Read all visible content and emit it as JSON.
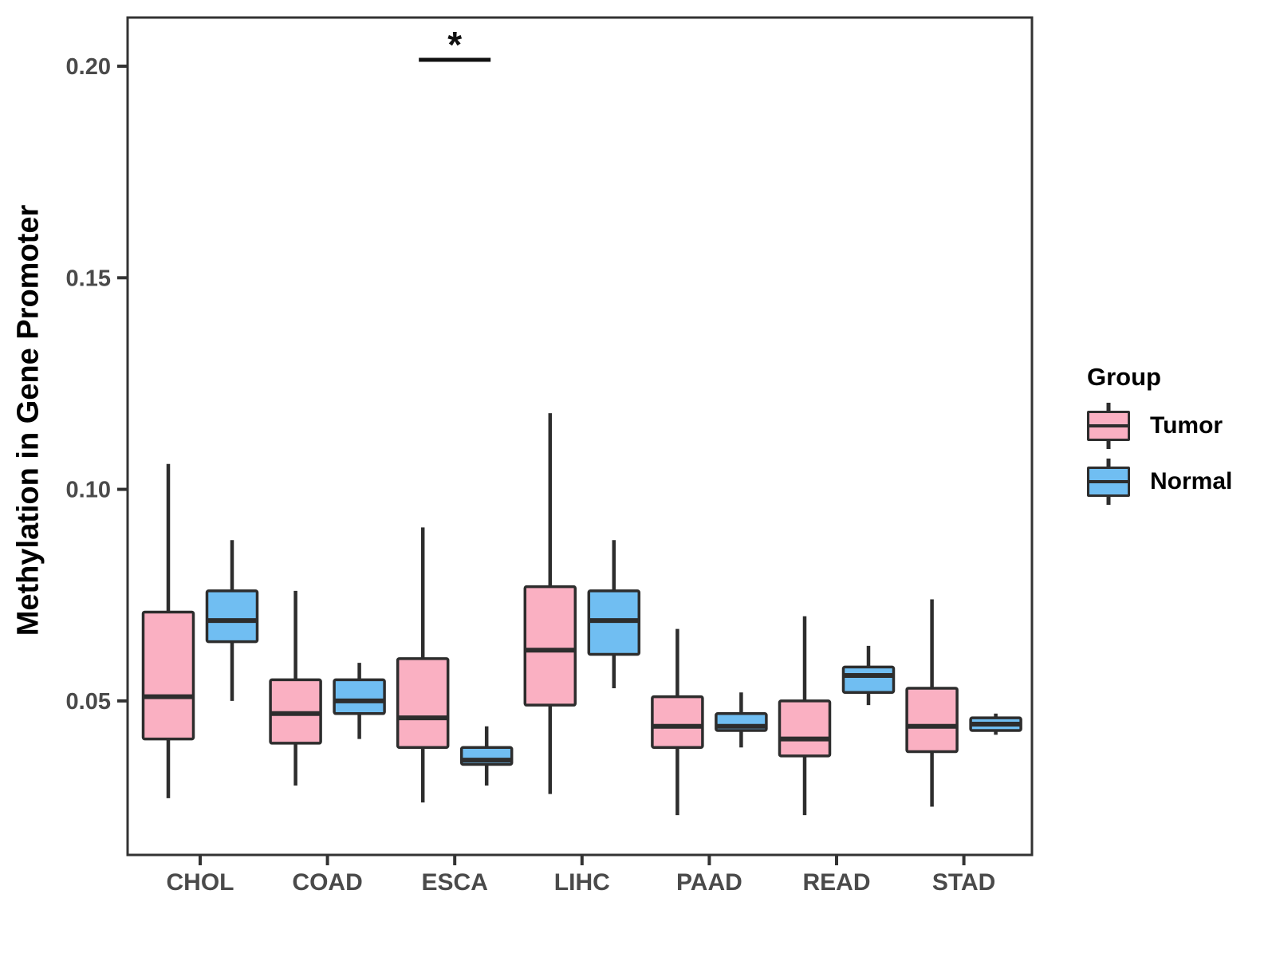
{
  "colors": {
    "tumor": "#FAB0C2",
    "normal": "#70BEF2",
    "box_line": "#2D2D2D",
    "axis_line": "#333333",
    "axis_text": "#4A4A4A",
    "significance": "#111111",
    "background": "#FFFFFF"
  },
  "chart_data": {
    "type": "boxplot",
    "title": "",
    "xlabel": "",
    "ylabel": "Methylation in Gene Promoter",
    "categories": [
      "CHOL",
      "COAD",
      "ESCA",
      "LIHC",
      "PAAD",
      "READ",
      "STAD"
    ],
    "y_ticks": [
      "0.05",
      "0.10",
      "0.15",
      "0.20"
    ],
    "ylim": [
      0.0136,
      0.2115
    ],
    "grid": false,
    "legend": {
      "title": "Group",
      "position": "right",
      "items": [
        {
          "label": "Tumor",
          "color_key": "tumor"
        },
        {
          "label": "Normal",
          "color_key": "normal"
        }
      ]
    },
    "series": [
      {
        "name": "Tumor",
        "color": "#FAB0C2",
        "boxes": [
          {
            "category": "CHOL",
            "min": 0.027,
            "q1": 0.041,
            "median": 0.051,
            "q3": 0.071,
            "max": 0.106
          },
          {
            "category": "COAD",
            "min": 0.03,
            "q1": 0.04,
            "median": 0.047,
            "q3": 0.055,
            "max": 0.076
          },
          {
            "category": "ESCA",
            "min": 0.026,
            "q1": 0.039,
            "median": 0.046,
            "q3": 0.06,
            "max": 0.091
          },
          {
            "category": "LIHC",
            "min": 0.028,
            "q1": 0.049,
            "median": 0.062,
            "q3": 0.077,
            "max": 0.118
          },
          {
            "category": "PAAD",
            "min": 0.023,
            "q1": 0.039,
            "median": 0.044,
            "q3": 0.051,
            "max": 0.067
          },
          {
            "category": "READ",
            "min": 0.023,
            "q1": 0.037,
            "median": 0.041,
            "q3": 0.05,
            "max": 0.07
          },
          {
            "category": "STAD",
            "min": 0.025,
            "q1": 0.038,
            "median": 0.044,
            "q3": 0.053,
            "max": 0.074
          }
        ]
      },
      {
        "name": "Normal",
        "color": "#70BEF2",
        "boxes": [
          {
            "category": "CHOL",
            "min": 0.05,
            "q1": 0.064,
            "median": 0.069,
            "q3": 0.076,
            "max": 0.088
          },
          {
            "category": "COAD",
            "min": 0.041,
            "q1": 0.047,
            "median": 0.05,
            "q3": 0.055,
            "max": 0.059
          },
          {
            "category": "ESCA",
            "min": 0.03,
            "q1": 0.035,
            "median": 0.036,
            "q3": 0.039,
            "max": 0.044
          },
          {
            "category": "LIHC",
            "min": 0.053,
            "q1": 0.061,
            "median": 0.069,
            "q3": 0.076,
            "max": 0.088
          },
          {
            "category": "PAAD",
            "min": 0.039,
            "q1": 0.043,
            "median": 0.044,
            "q3": 0.047,
            "max": 0.052
          },
          {
            "category": "READ",
            "min": 0.049,
            "q1": 0.052,
            "median": 0.056,
            "q3": 0.058,
            "max": 0.063
          },
          {
            "category": "STAD",
            "min": 0.042,
            "q1": 0.043,
            "median": 0.0445,
            "q3": 0.046,
            "max": 0.047
          }
        ]
      }
    ],
    "annotations": [
      {
        "type": "significance-bracket",
        "category": "ESCA",
        "between": [
          "Tumor",
          "Normal"
        ],
        "label": "*",
        "y": 0.2015
      }
    ]
  }
}
